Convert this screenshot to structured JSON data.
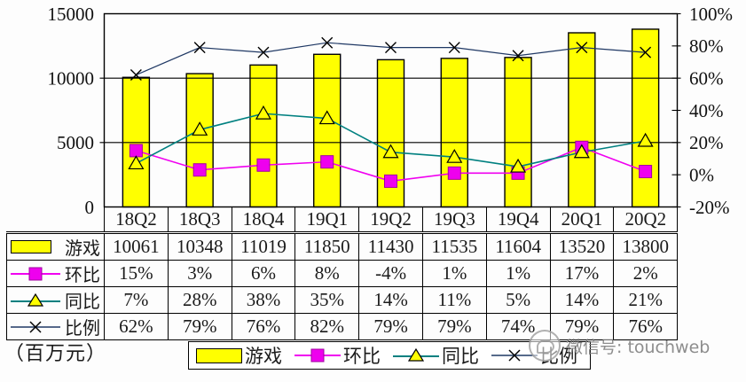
{
  "chart_data": {
    "type": "combo-bar-line",
    "categories": [
      "18Q2",
      "18Q3",
      "18Q4",
      "19Q1",
      "19Q2",
      "19Q3",
      "19Q4",
      "20Q1",
      "20Q2"
    ],
    "series": [
      {
        "name": "游戏",
        "type": "bar",
        "axis": "left",
        "color": "#FFFF00",
        "stroke": "#000000",
        "values": [
          10061,
          10348,
          11019,
          11850,
          11430,
          11535,
          11604,
          13520,
          13800
        ]
      },
      {
        "name": "环比",
        "type": "line",
        "axis": "right",
        "color": "#F000F0",
        "marker": "square",
        "marker_fill": "#EE00EE",
        "values": [
          15,
          3,
          6,
          8,
          -4,
          1,
          1,
          17,
          2
        ]
      },
      {
        "name": "同比",
        "type": "line",
        "axis": "right",
        "color": "#008080",
        "marker": "triangle",
        "marker_fill": "#FFFF00",
        "values": [
          7,
          28,
          38,
          35,
          14,
          11,
          5,
          14,
          21
        ]
      },
      {
        "name": "比例",
        "type": "line",
        "axis": "right",
        "color": "#1F3864",
        "marker": "x",
        "marker_fill": "#000000",
        "values": [
          62,
          79,
          76,
          82,
          79,
          79,
          74,
          79,
          76
        ]
      }
    ],
    "left_axis": {
      "min": 0,
      "max": 15000,
      "ticks": [
        "15000",
        "10000",
        "5000",
        "0"
      ]
    },
    "right_axis": {
      "min": -20,
      "max": 100,
      "ticks": [
        "100%",
        "80%",
        "60%",
        "40%",
        "20%",
        "0%",
        "-20%"
      ]
    },
    "grid": true,
    "legend_position": "bottom",
    "xlabel": "",
    "ylabel": "",
    "title": "",
    "unit_label": "（百万元）"
  },
  "table": {
    "columns": [
      "18Q2",
      "18Q3",
      "18Q4",
      "19Q1",
      "19Q2",
      "19Q3",
      "19Q4",
      "20Q1",
      "20Q2"
    ],
    "rows": [
      {
        "label": "游戏",
        "values": [
          "10061",
          "10348",
          "11019",
          "11850",
          "11430",
          "11535",
          "11604",
          "13520",
          "13800"
        ]
      },
      {
        "label": "环比",
        "values": [
          "15%",
          "3%",
          "6%",
          "8%",
          "-4%",
          "1%",
          "1%",
          "17%",
          "2%"
        ]
      },
      {
        "label": "同比",
        "values": [
          "7%",
          "28%",
          "38%",
          "35%",
          "14%",
          "11%",
          "5%",
          "14%",
          "21%"
        ]
      },
      {
        "label": "比例",
        "values": [
          "62%",
          "79%",
          "76%",
          "82%",
          "79%",
          "79%",
          "74%",
          "79%",
          "76%"
        ]
      }
    ]
  },
  "legend": {
    "items": [
      {
        "label": "游戏"
      },
      {
        "label": "环比"
      },
      {
        "label": "同比"
      },
      {
        "label": "比例"
      }
    ]
  },
  "watermark": {
    "text": "微信号: touchweb"
  },
  "colors": {
    "bar": "#FFFF00",
    "huanbi": "#F000F0",
    "tongbi": "#008080",
    "bili": "#1F3864",
    "grid": "#000000"
  }
}
